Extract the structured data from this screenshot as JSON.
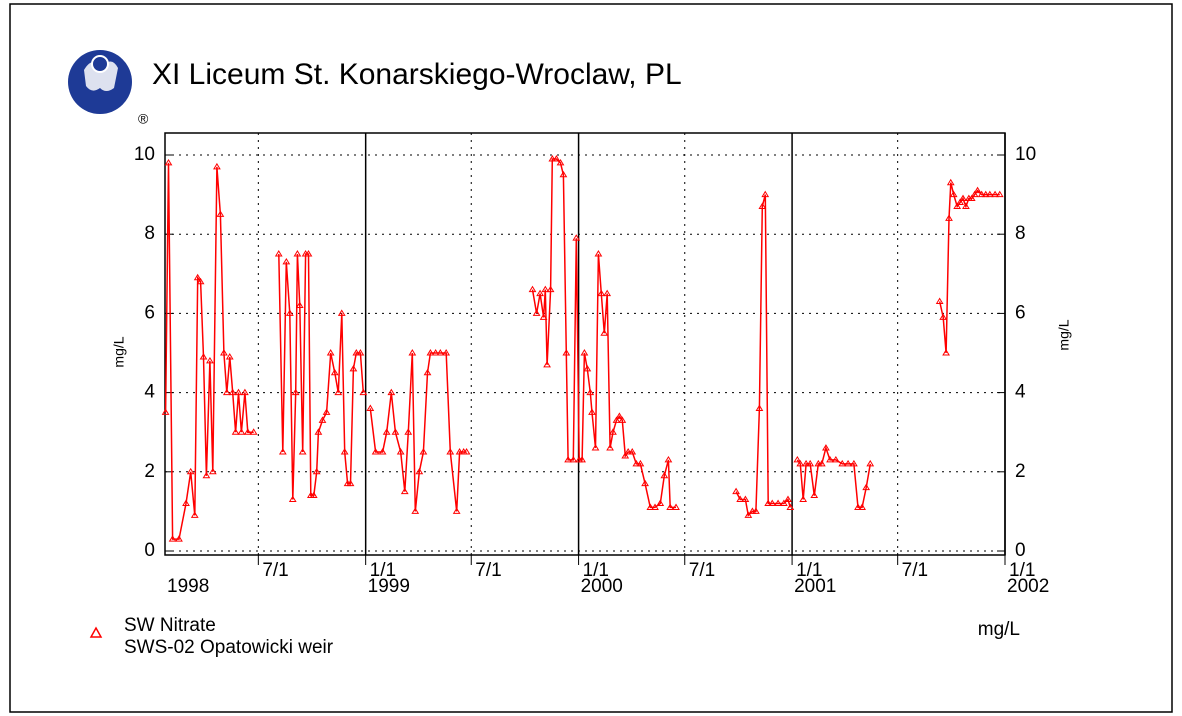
{
  "chart_data": {
    "type": "line",
    "title": "XI Liceum St. Konarskiego-Wroclaw, PL",
    "logo_mark": "®",
    "ylabel": "mg/L",
    "y2label": "mg/L",
    "units_label": "mg/L",
    "station": "SWS-02 Opatowicki weir",
    "xlim": [
      "1998-01-22",
      "2002-01-01"
    ],
    "ylim": [
      0,
      10
    ],
    "yticks": [
      0,
      2,
      4,
      6,
      8,
      10
    ],
    "y2lim": [
      0,
      10
    ],
    "y2ticks": [
      0,
      2,
      4,
      6,
      8,
      10
    ],
    "xticks": [
      {
        "value": "1998-07-01",
        "label": "7/1"
      },
      {
        "value": "1999-01-01",
        "label": "1/1"
      },
      {
        "value": "1999-07-01",
        "label": "7/1"
      },
      {
        "value": "2000-01-01",
        "label": "1/1"
      },
      {
        "value": "2000-07-01",
        "label": "7/1"
      },
      {
        "value": "2001-01-01",
        "label": "1/1"
      },
      {
        "value": "2001-07-01",
        "label": "7/1"
      },
      {
        "value": "2002-01-01",
        "label": "1/1"
      }
    ],
    "year_labels": [
      {
        "value": "1998-01-22",
        "label": "1998"
      },
      {
        "value": "1999-01-01",
        "label": "1999"
      },
      {
        "value": "2000-01-01",
        "label": "2000"
      },
      {
        "value": "2001-01-01",
        "label": "2001"
      },
      {
        "value": "2002-01-01",
        "label": "2002"
      }
    ],
    "grid": true,
    "year_separators": true,
    "x": [
      "1998-01-23",
      "1998-01-28",
      "1998-02-04",
      "1998-02-15",
      "1998-02-27",
      "1998-03-07",
      "1998-03-14",
      "1998-03-19",
      "1998-03-24",
      "1998-03-29",
      "1998-04-03",
      "1998-04-09",
      "1998-04-14",
      "1998-04-21",
      "1998-04-27",
      "1998-05-03",
      "1998-05-08",
      "1998-05-13",
      "1998-05-18",
      "1998-05-23",
      "1998-05-28",
      "1998-06-02",
      "1998-06-08",
      "1998-06-13",
      "1998-06-23",
      "1998-07-15",
      "1998-08-05",
      "1998-08-12",
      "1998-08-18",
      "1998-08-24",
      "1998-08-29",
      "1998-09-03",
      "1998-09-06",
      "1998-09-10",
      "1998-09-15",
      "1998-09-20",
      "1998-09-25",
      "1998-09-29",
      "1998-10-04",
      "1998-10-09",
      "1998-10-12",
      "1998-10-19",
      "1998-10-26",
      "1998-11-02",
      "1998-11-09",
      "1998-11-15",
      "1998-11-21",
      "1998-11-26",
      "1998-12-01",
      "1998-12-06",
      "1998-12-11",
      "1998-12-16",
      "1998-12-23",
      "1998-12-28",
      "1999-01-01",
      "1999-01-09",
      "1999-01-18",
      "1999-01-30",
      "1999-02-06",
      "1999-02-14",
      "1999-02-21",
      "1999-03-02",
      "1999-03-09",
      "1999-03-15",
      "1999-03-22",
      "1999-03-27",
      "1999-04-03",
      "1999-04-10",
      "1999-04-17",
      "1999-04-22",
      "1999-05-01",
      "1999-05-09",
      "1999-05-19",
      "1999-05-26",
      "1999-06-06",
      "1999-06-11",
      "1999-06-18",
      "1999-06-23",
      "1999-08-15",
      "1999-10-14",
      "1999-10-21",
      "1999-10-27",
      "1999-11-02",
      "1999-11-05",
      "1999-11-08",
      "1999-11-14",
      "1999-11-17",
      "1999-11-24",
      "1999-12-01",
      "1999-12-06",
      "1999-12-11",
      "1999-12-14",
      "1999-12-23",
      "1999-12-28",
      "2000-01-02",
      "2000-01-07",
      "2000-01-11",
      "2000-01-16",
      "2000-01-21",
      "2000-01-24",
      "2000-01-30",
      "2000-02-04",
      "2000-02-09",
      "2000-02-14",
      "2000-02-19",
      "2000-02-24",
      "2000-02-29",
      "2000-03-06",
      "2000-03-11",
      "2000-03-16",
      "2000-03-21",
      "2000-03-26",
      "2000-04-02",
      "2000-04-09",
      "2000-04-16",
      "2000-04-24",
      "2000-05-03",
      "2000-05-11",
      "2000-05-20",
      "2000-05-27",
      "2000-06-03",
      "2000-06-06",
      "2000-06-16",
      "2000-08-01",
      "2000-09-27",
      "2000-10-04",
      "2000-10-13",
      "2000-10-18",
      "2000-10-25",
      "2000-10-31",
      "2000-11-06",
      "2000-11-11",
      "2000-11-16",
      "2000-11-21",
      "2000-11-28",
      "2000-12-08",
      "2000-12-18",
      "2000-12-25",
      "2000-12-29",
      "2001-01-01",
      "2001-01-10",
      "2001-01-15",
      "2001-01-20",
      "2001-01-25",
      "2001-02-01",
      "2001-02-08",
      "2001-02-15",
      "2001-02-21",
      "2001-02-28",
      "2001-03-07",
      "2001-03-17",
      "2001-03-28",
      "2001-04-07",
      "2001-04-17",
      "2001-04-24",
      "2001-05-01",
      "2001-05-08",
      "2001-05-15",
      "2001-07-01",
      "2001-09-11",
      "2001-09-17",
      "2001-09-22",
      "2001-09-27",
      "2001-09-30",
      "2001-10-05",
      "2001-10-11",
      "2001-10-16",
      "2001-10-21",
      "2001-10-26",
      "2001-10-31",
      "2001-11-05",
      "2001-11-10",
      "2001-11-15",
      "2001-11-22",
      "2001-11-29",
      "2001-12-06",
      "2001-12-15",
      "2001-12-23"
    ],
    "series": [
      {
        "name": "SW Nitrate",
        "color": "#ff0000",
        "values": [
          3.5,
          9.8,
          0.3,
          0.3,
          1.2,
          2.0,
          0.9,
          6.9,
          6.8,
          4.9,
          1.9,
          4.8,
          2.0,
          9.7,
          8.5,
          5.0,
          4.0,
          4.9,
          4.0,
          3.0,
          4.0,
          3.0,
          4.0,
          3.0,
          3.0,
          null,
          7.5,
          2.5,
          7.3,
          6.0,
          1.3,
          4.0,
          7.5,
          6.2,
          2.5,
          7.5,
          7.5,
          1.4,
          1.4,
          2.0,
          3.0,
          3.3,
          3.5,
          5.0,
          4.5,
          4.0,
          6.0,
          2.5,
          1.7,
          1.7,
          4.6,
          5.0,
          5.0,
          4.0,
          null,
          3.6,
          2.5,
          2.5,
          3.0,
          4.0,
          3.0,
          2.5,
          1.5,
          3.0,
          5.0,
          1.0,
          2.0,
          2.5,
          4.5,
          5.0,
          5.0,
          5.0,
          5.0,
          2.5,
          1.0,
          2.5,
          2.5,
          2.5,
          null,
          6.6,
          6.0,
          6.5,
          5.9,
          6.6,
          4.7,
          6.6,
          9.9,
          9.9,
          9.8,
          9.5,
          5.0,
          2.3,
          2.3,
          7.9,
          2.3,
          2.3,
          5.0,
          4.6,
          4.0,
          3.5,
          2.6,
          7.5,
          6.5,
          5.5,
          6.5,
          2.6,
          3.0,
          3.3,
          3.4,
          3.3,
          2.4,
          2.5,
          2.5,
          2.2,
          2.2,
          1.7,
          1.1,
          1.1,
          1.2,
          1.9,
          2.3,
          1.1,
          1.1,
          null,
          1.5,
          1.3,
          1.3,
          0.9,
          1.0,
          1.0,
          3.6,
          8.7,
          9.0,
          1.2,
          1.2,
          1.2,
          1.2,
          1.3,
          1.1,
          null,
          2.3,
          2.2,
          1.3,
          2.2,
          2.2,
          1.4,
          2.2,
          2.2,
          2.6,
          2.3,
          2.3,
          2.2,
          2.2,
          2.2,
          1.1,
          1.1,
          1.6,
          2.2,
          null,
          6.3,
          5.9,
          5.0,
          8.4,
          9.3,
          9.0,
          8.7,
          8.8,
          8.9,
          8.7,
          8.9,
          8.9,
          9.0,
          9.1,
          9.0,
          9.0,
          9.0,
          9.0,
          9.0
        ]
      }
    ]
  }
}
